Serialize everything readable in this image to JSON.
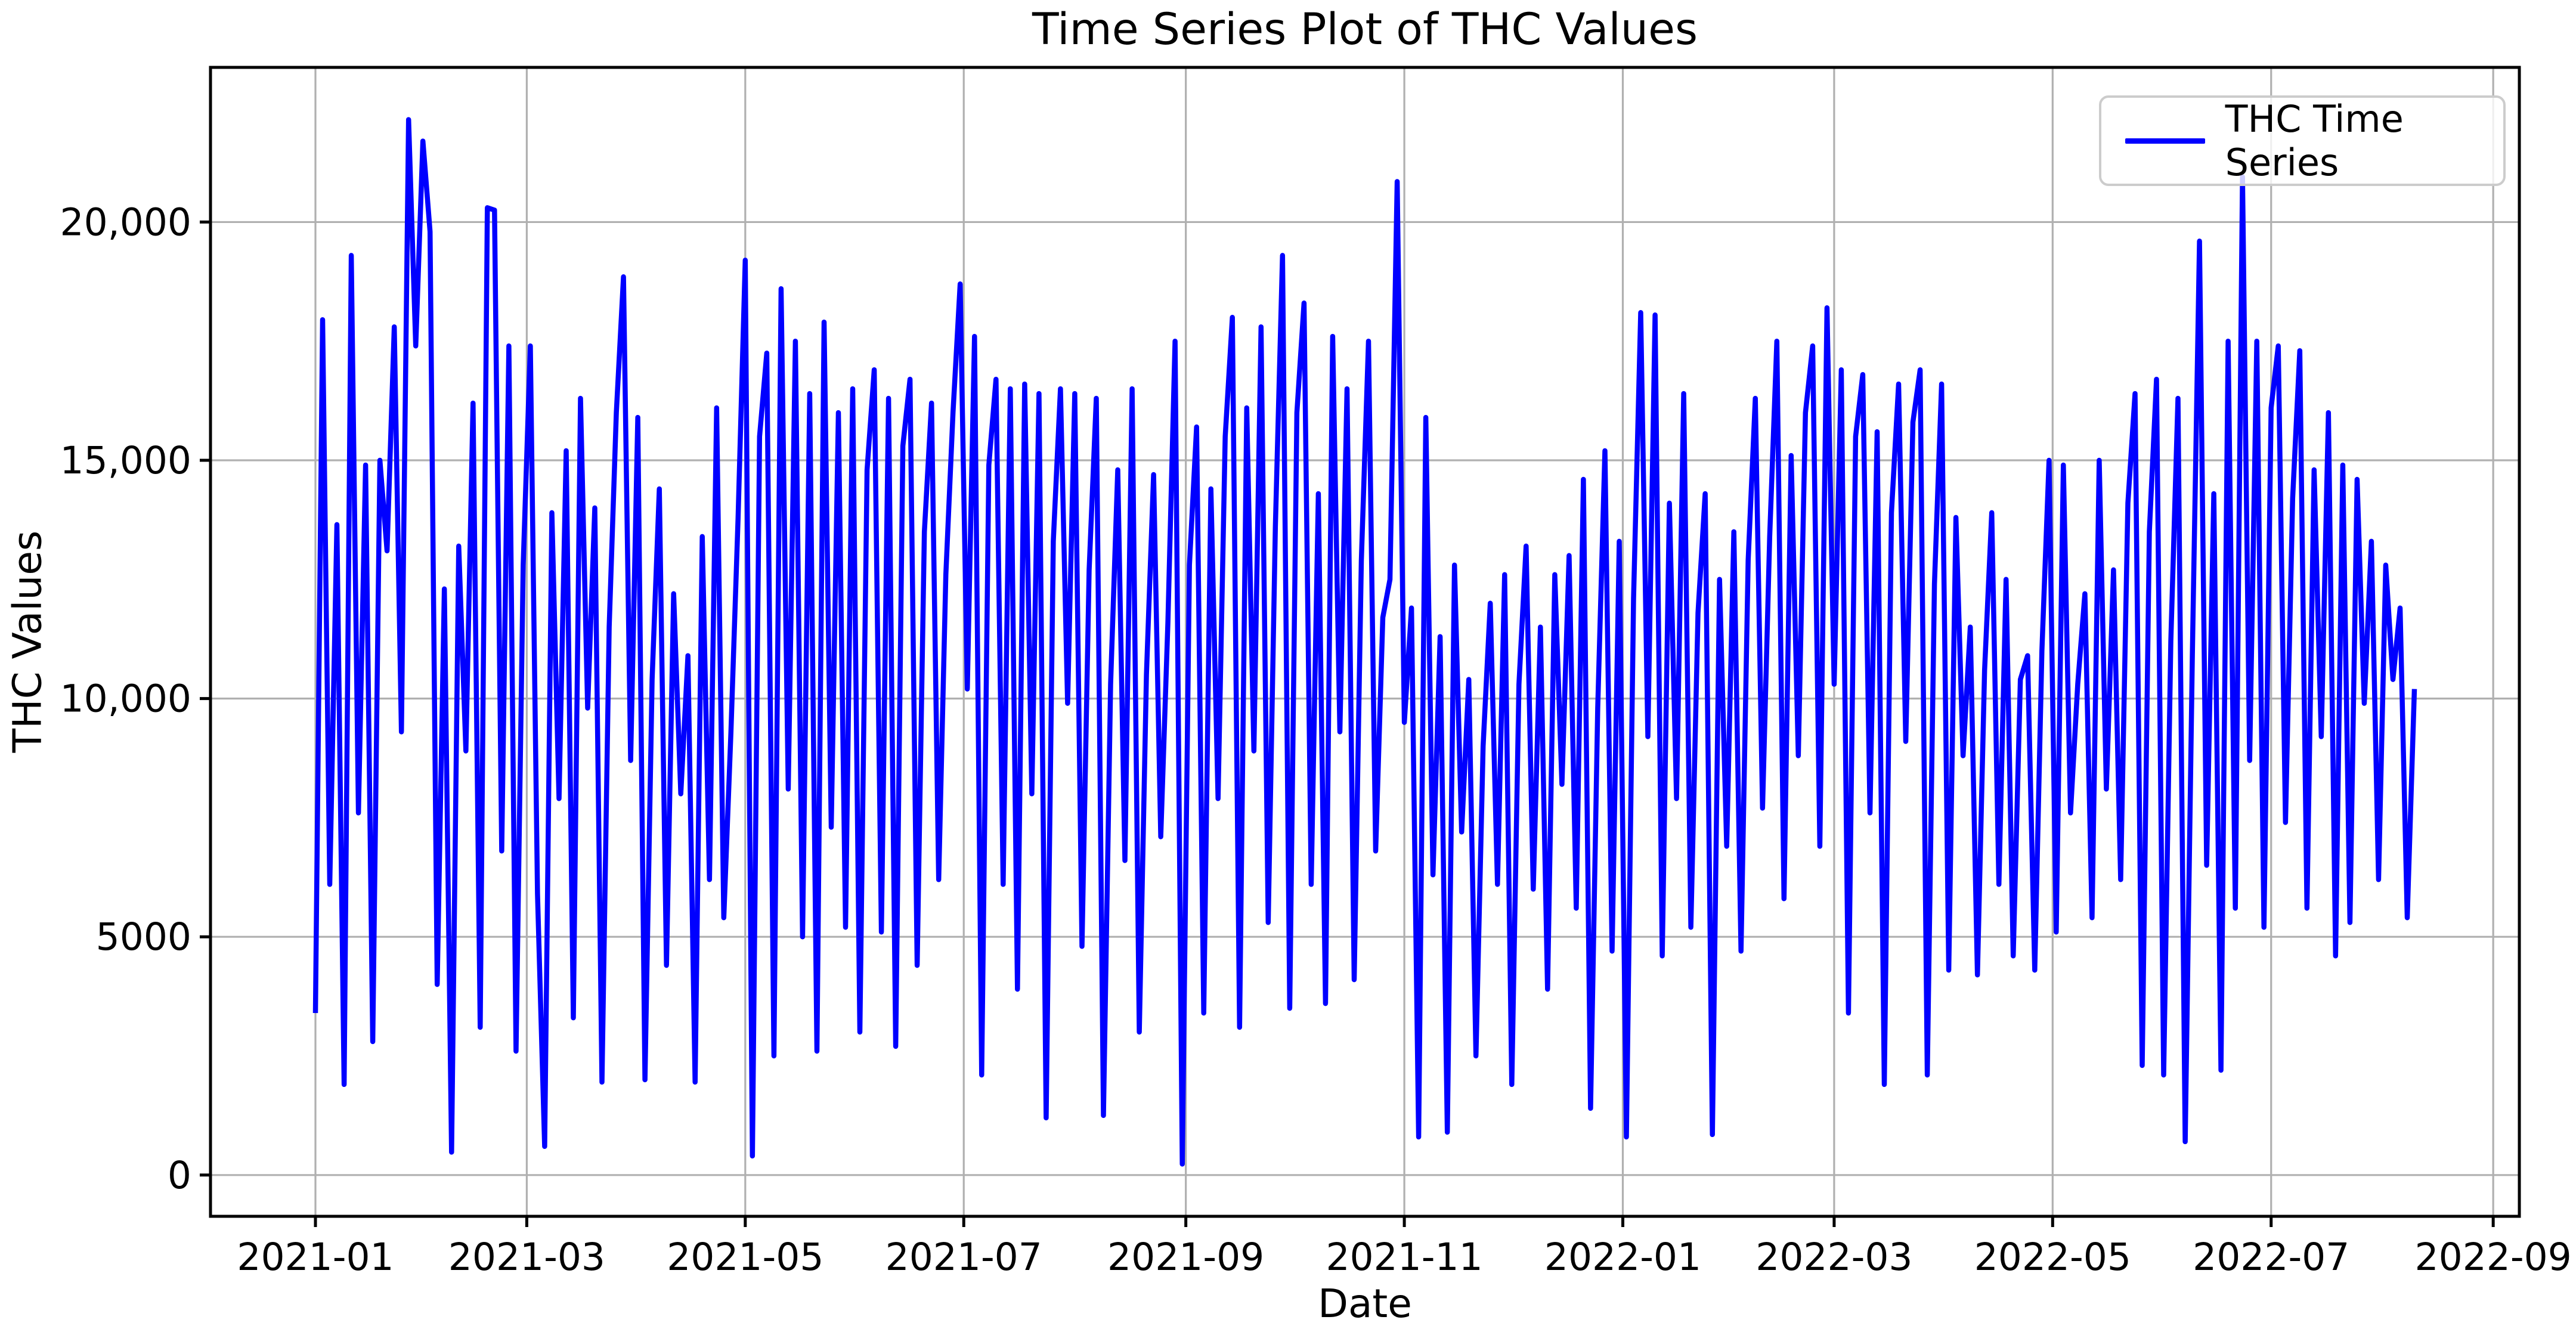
{
  "chart_data": {
    "type": "line",
    "title": "Time Series Plot of THC Values",
    "xlabel": "Date",
    "ylabel": "THC Values",
    "grid": true,
    "legend": {
      "position": "upper right",
      "entries": [
        {
          "label": "THC Time Series",
          "color": "#0000ff"
        }
      ]
    },
    "colors": {
      "line": "#0000ff",
      "grid": "#b0b0b0",
      "axis": "#000000",
      "background": "#ffffff",
      "legend_border": "#cccccc"
    },
    "x_tick_labels": [
      "2021-01",
      "2021-03",
      "2021-05",
      "2021-07",
      "2021-09",
      "2021-11",
      "2022-01",
      "2022-03",
      "2022-05",
      "2022-07",
      "2022-09"
    ],
    "x_tick_days": [
      0,
      59,
      120,
      181,
      243,
      304,
      365,
      424,
      485,
      546,
      608
    ],
    "y_tick_labels": [
      "0",
      "5000",
      "10,000",
      "15,000",
      "20,000"
    ],
    "y_tick_values": [
      0,
      5000,
      10000,
      15000,
      20000
    ],
    "x_range_days": [
      -29.3,
      615.3
    ],
    "ylim": [
      -866,
      23246
    ],
    "series": [
      {
        "name": "THC Time Series",
        "color": "#0000ff",
        "x_start_date": "2021-01-01",
        "x_step_days": 2,
        "values": [
          3400,
          17950,
          6100,
          13650,
          1900,
          19300,
          7600,
          14900,
          2800,
          15000,
          13100,
          17800,
          9300,
          22150,
          17400,
          21700,
          19800,
          4000,
          12300,
          480,
          13200,
          8900,
          16200,
          3100,
          20300,
          20250,
          6800,
          17400,
          2600,
          12800,
          17400,
          5900,
          600,
          13900,
          7900,
          15200,
          3300,
          16300,
          9800,
          14000,
          1950,
          11500,
          16000,
          18850,
          8700,
          15900,
          2000,
          10400,
          14400,
          4400,
          12200,
          8000,
          10900,
          1950,
          13400,
          6200,
          16100,
          5400,
          9300,
          13800,
          19200,
          400,
          15500,
          17250,
          2500,
          18600,
          8100,
          17500,
          5000,
          16400,
          2600,
          17900,
          7300,
          16000,
          5200,
          16500,
          3000,
          14800,
          16900,
          5100,
          16300,
          2700,
          15300,
          16700,
          4400,
          13500,
          16200,
          6200,
          12600,
          16000,
          18700,
          10200,
          17600,
          2100,
          14900,
          16700,
          6100,
          16500,
          3900,
          16600,
          8000,
          16400,
          1200,
          13300,
          16500,
          9900,
          16400,
          4800,
          12700,
          16300,
          1250,
          10300,
          14800,
          6600,
          16500,
          3000,
          10500,
          14700,
          7100,
          11600,
          17500,
          230,
          12800,
          15700,
          3400,
          14400,
          7900,
          15500,
          18000,
          3100,
          16100,
          8900,
          17800,
          5300,
          13600,
          19300,
          3500,
          16000,
          18300,
          6100,
          14300,
          3600,
          17600,
          9300,
          16500,
          4100,
          12900,
          17500,
          6800,
          11700,
          12500,
          20850,
          9500,
          11900,
          800,
          15900,
          6300,
          11300,
          900,
          12800,
          7200,
          10400,
          2500,
          9000,
          12000,
          6100,
          12600,
          1900,
          10300,
          13200,
          6000,
          11500,
          3900,
          12600,
          8200,
          13000,
          5600,
          14600,
          1400,
          9800,
          15200,
          4700,
          13300,
          800,
          12100,
          18100,
          9200,
          18050,
          4600,
          14100,
          7900,
          16400,
          5200,
          11800,
          14300,
          850,
          12500,
          6900,
          13500,
          4700,
          12900,
          16300,
          7700,
          13400,
          17500,
          5800,
          15100,
          8800,
          16000,
          17400,
          6900,
          18200,
          10300,
          16900,
          3400,
          15500,
          16800,
          7600,
          15600,
          1900,
          13900,
          16600,
          9100,
          15800,
          16900,
          2100,
          12400,
          16600,
          4300,
          13800,
          8800,
          11500,
          4200,
          10600,
          13900,
          6100,
          12500,
          4600,
          10400,
          10900,
          4300,
          11000,
          15000,
          5100,
          14900,
          7600,
          10300,
          12200,
          5400,
          15000,
          8100,
          12700,
          6200,
          14100,
          16400,
          2300,
          13500,
          16700,
          2100,
          11200,
          16300,
          700,
          10900,
          19600,
          6500,
          14300,
          2200,
          17500,
          5600,
          20950,
          8700,
          17500,
          5200,
          16100,
          17400,
          7400,
          14200,
          17300,
          5600,
          14800,
          9200,
          16000,
          4600,
          14900,
          5300,
          14600,
          9900,
          13300,
          6200,
          12800,
          10400,
          11900,
          5400,
          10200
        ]
      }
    ]
  }
}
